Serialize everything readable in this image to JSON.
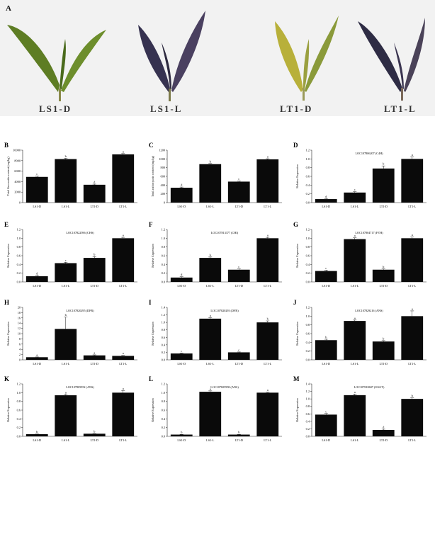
{
  "figure": {
    "panel_a_letter": "A",
    "leaf_labels": [
      "LS1-D",
      "LS1-L",
      "LT1-D",
      "LT1-L"
    ],
    "leaf_colors": {
      "green": "#6b8a2a",
      "dark_purple": "#3a3550",
      "yellow": "#b9b43a",
      "stem": "#7c7a4a"
    }
  },
  "chart_data": [
    {
      "letter": "B",
      "type": "bar",
      "title": "",
      "ylabel": "Total flavonoids content (mg/kg)",
      "categories": [
        "LS1-D",
        "LS1-L",
        "LT1-D",
        "LT1-L"
      ],
      "values": [
        4900,
        8300,
        3400,
        9200
      ],
      "errors": [
        150,
        150,
        120,
        150
      ],
      "letters": [
        "c",
        "b",
        "d",
        "a"
      ],
      "ylim": [
        0,
        10000
      ],
      "yticks": [
        "0",
        "2000",
        "4000",
        "6000",
        "8000",
        "10000"
      ]
    },
    {
      "letter": "C",
      "type": "bar",
      "title": "",
      "ylabel": "Total anthocyanin content (mg/kg)",
      "categories": [
        "LS1-D",
        "LS1-L",
        "LT1-D",
        "LT1-L"
      ],
      "values": [
        340,
        880,
        480,
        990
      ],
      "errors": [
        15,
        15,
        15,
        15
      ],
      "letters": [
        "d",
        "b",
        "c",
        "a"
      ],
      "ylim": [
        0,
        1200
      ],
      "yticks": [
        "0",
        "200",
        "400",
        "600",
        "800",
        "1000",
        "1200"
      ]
    },
    {
      "letter": "D",
      "type": "bar",
      "title": "LOC107806207 (C4H)",
      "ylabel": "Relative Expression",
      "categories": [
        "LS1-D",
        "LS1-L",
        "LT1-D",
        "LT1-L"
      ],
      "values": [
        0.08,
        0.23,
        0.78,
        1.0
      ],
      "errors": [
        0.01,
        0.02,
        0.06,
        0.05
      ],
      "letters": [
        "d",
        "c",
        "b",
        "a"
      ],
      "ylim": [
        0,
        1.2
      ],
      "yticks": [
        "0.0",
        "0.2",
        "0.4",
        "0.6",
        "0.8",
        "1.0",
        "1.2"
      ]
    },
    {
      "letter": "E",
      "type": "bar",
      "title": "LOC107822596 (CHS)",
      "ylabel": "Relative Expression",
      "categories": [
        "LS1-D",
        "LS1-L",
        "LT1-D",
        "LT1-L"
      ],
      "values": [
        0.13,
        0.43,
        0.55,
        1.0
      ],
      "errors": [
        0.02,
        0.02,
        0.03,
        0.02
      ],
      "letters": [
        "d",
        "c",
        "b",
        "a"
      ],
      "ylim": [
        0,
        1.2
      ],
      "yticks": [
        "0.0",
        "0.2",
        "0.4",
        "0.6",
        "0.8",
        "1.0",
        "1.2"
      ]
    },
    {
      "letter": "F",
      "type": "bar",
      "title": "LOC107813377 (CHI)",
      "ylabel": "Relative Expression",
      "categories": [
        "LS1-D",
        "LS1-L",
        "LT1-D",
        "LT1-L"
      ],
      "values": [
        0.1,
        0.55,
        0.28,
        1.0
      ],
      "errors": [
        0.02,
        0.02,
        0.02,
        0.02
      ],
      "letters": [
        "d",
        "b",
        "c",
        "a"
      ],
      "ylim": [
        0,
        1.2
      ],
      "yticks": [
        "0.0",
        "0.2",
        "0.4",
        "0.6",
        "0.8",
        "1.0",
        "1.2"
      ]
    },
    {
      "letter": "G",
      "type": "bar",
      "title": "LOC107804717 (F3'H)",
      "ylabel": "Relative Expression",
      "categories": [
        "LS1-D",
        "LS1-L",
        "LT1-D",
        "LT1-L"
      ],
      "values": [
        0.25,
        0.98,
        0.28,
        1.0
      ],
      "errors": [
        0.02,
        0.03,
        0.02,
        0.03
      ],
      "letters": [
        "c",
        "a",
        "b",
        "a"
      ],
      "ylim": [
        0,
        1.2
      ],
      "yticks": [
        "0.0",
        "0.2",
        "0.4",
        "0.6",
        "0.8",
        "1.0",
        "1.2"
      ]
    },
    {
      "letter": "H",
      "type": "bar",
      "title": "LOC107820295 (DFR)",
      "ylabel": "Relative Expression",
      "categories": [
        "LS1-D",
        "LS1-L",
        "LT1-D",
        "LT1-L"
      ],
      "values": [
        1.0,
        11.8,
        1.7,
        1.5
      ],
      "errors": [
        0.1,
        4.5,
        0.2,
        0.2
      ],
      "letters": [
        "a",
        "b",
        "a",
        "a"
      ],
      "ylim": [
        0,
        20
      ],
      "yticks": [
        "0",
        "2",
        "4",
        "6",
        "8",
        "10",
        "12",
        "14",
        "16",
        "18",
        "20"
      ]
    },
    {
      "letter": "I",
      "type": "bar",
      "title": "LOC107820293 (DFR)",
      "ylabel": "Relative Expression",
      "categories": [
        "LS1-D",
        "LS1-L",
        "LT1-D",
        "LT1-L"
      ],
      "values": [
        0.17,
        1.1,
        0.2,
        1.0
      ],
      "errors": [
        0.01,
        0.03,
        0.01,
        0.04
      ],
      "letters": [
        "c",
        "a",
        "c",
        "b"
      ],
      "ylim": [
        0,
        1.4
      ],
      "yticks": [
        "0.0",
        "0.2",
        "0.4",
        "0.6",
        "0.8",
        "1.0",
        "1.2",
        "1.4"
      ]
    },
    {
      "letter": "J",
      "type": "bar",
      "title": "LOC107829216 (ANS)",
      "ylabel": "Relative Expression",
      "categories": [
        "LS1-D",
        "LS1-L",
        "LT1-D",
        "LT1-L"
      ],
      "values": [
        0.45,
        0.89,
        0.42,
        1.0
      ],
      "errors": [
        0.02,
        0.02,
        0.02,
        0.12
      ],
      "letters": [
        "b",
        "a",
        "b",
        "a"
      ],
      "ylim": [
        0,
        1.2
      ],
      "yticks": [
        "0.0",
        "0.2",
        "0.4",
        "0.6",
        "0.8",
        "1.0",
        "1.2"
      ]
    },
    {
      "letter": "K",
      "type": "bar",
      "title": "LOC107805952 (ANS)",
      "ylabel": "Relative Expression",
      "categories": [
        "LS1-D",
        "LS1-L",
        "LT1-D",
        "LT1-L"
      ],
      "values": [
        0.05,
        0.94,
        0.06,
        1.0
      ],
      "errors": [
        0.005,
        0.02,
        0.005,
        0.05
      ],
      "letters": [
        "b",
        "a",
        "b",
        "a"
      ],
      "ylim": [
        0,
        1.2
      ],
      "yticks": [
        "0.0",
        "0.2",
        "0.4",
        "0.6",
        "0.8",
        "1.0",
        "1.2"
      ]
    },
    {
      "letter": "L",
      "type": "bar",
      "title": "LOC107825958 (ANS)",
      "ylabel": "Relative Expression",
      "categories": [
        "LS1-D",
        "LS1-L",
        "LT1-D",
        "LT1-L"
      ],
      "values": [
        0.04,
        1.02,
        0.04,
        1.0
      ],
      "errors": [
        0.005,
        0.02,
        0.005,
        0.01
      ],
      "letters": [
        "b",
        "a",
        "b",
        "a"
      ],
      "ylim": [
        0,
        1.2
      ],
      "yticks": [
        "0.0",
        "0.2",
        "0.4",
        "0.6",
        "0.8",
        "1.0",
        "1.2"
      ]
    },
    {
      "letter": "M",
      "type": "bar",
      "title": "LOC107818607 (UGGT)",
      "ylabel": "Relative Expression",
      "categories": [
        "LS1-D",
        "LS1-L",
        "LT1-D",
        "LT1-L"
      ],
      "values": [
        0.58,
        1.1,
        0.17,
        1.0
      ],
      "errors": [
        0.03,
        0.03,
        0.02,
        0.03
      ],
      "letters": [
        "c",
        "a",
        "d",
        "b"
      ],
      "ylim": [
        0,
        1.4
      ],
      "yticks": [
        "0.0",
        "0.2",
        "0.4",
        "0.6",
        "0.8",
        "1.0",
        "1.2",
        "1.4"
      ]
    }
  ]
}
